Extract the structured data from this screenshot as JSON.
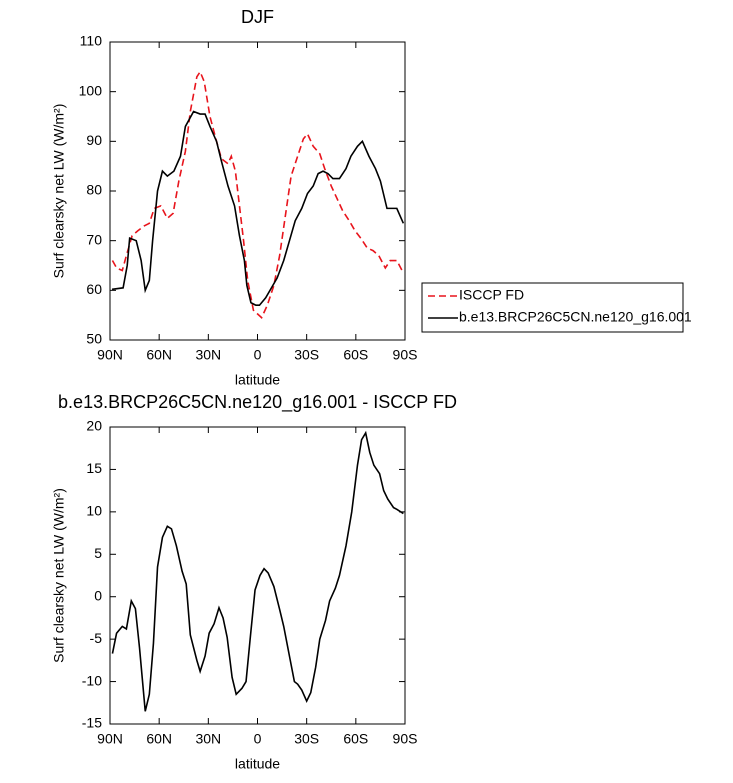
{
  "chart_data": [
    {
      "type": "line",
      "title": "DJF",
      "xlabel": "latitude",
      "ylabel": "Surf clearsky net LW (W/m²)",
      "xlim": [
        90,
        -90
      ],
      "xticks": [
        {
          "value": 90,
          "label": "90N"
        },
        {
          "value": 60,
          "label": "60N"
        },
        {
          "value": 30,
          "label": "30N"
        },
        0,
        {
          "value": -30,
          "label": "30S"
        },
        {
          "value": -60,
          "label": "60S"
        },
        {
          "value": -90,
          "label": "90S"
        }
      ],
      "ylim": [
        50,
        110
      ],
      "yticks": [
        50,
        60,
        70,
        80,
        90,
        100,
        110
      ],
      "legend": "outside-right",
      "series": [
        {
          "name": "ISCCP FD",
          "color": "#e8141c",
          "dashed": true,
          "x": [
            88.5,
            86,
            82.5,
            80,
            76.5,
            73,
            69,
            66,
            63,
            59,
            55,
            51.5,
            48,
            44,
            41,
            37,
            35,
            32.5,
            29,
            25,
            22,
            18,
            16,
            13.5,
            11,
            8.5,
            6,
            2.5,
            -2.5,
            -6,
            -10,
            -13.5,
            -17,
            -20.5,
            -24.5,
            -28,
            -30.5,
            -34,
            -38,
            -41,
            -45,
            -48.5,
            -52,
            -56,
            -59.5,
            -63,
            -67,
            -70.5,
            -74,
            -78,
            -81,
            -85,
            -89
          ],
          "values": [
            66,
            64.5,
            64,
            67,
            71,
            72,
            73,
            73.5,
            76.5,
            77,
            74.5,
            75.5,
            82,
            88,
            96,
            103,
            104,
            102,
            95,
            90,
            86.5,
            85.5,
            87,
            84,
            77,
            70,
            62,
            56,
            54.5,
            57,
            61,
            67,
            75,
            83,
            87,
            90.5,
            91.5,
            89,
            87.5,
            84.5,
            81,
            78.5,
            76,
            74,
            72,
            70.5,
            68.5,
            68,
            67,
            64.5,
            66,
            66,
            63.5
          ]
        },
        {
          "name": "b.e13.BRCP26C5CN.ne120_g16.001",
          "color": "#000000",
          "dashed": false,
          "x": [
            88.75,
            82,
            79.5,
            78,
            74,
            71,
            68.5,
            66,
            64,
            61,
            58,
            55,
            51,
            47,
            44,
            39,
            35,
            32,
            29,
            25,
            22,
            18,
            14,
            11,
            8,
            6.5,
            4,
            1,
            -1.2,
            -5,
            -8.5,
            -12,
            -16,
            -19.5,
            -23,
            -27,
            -30.5,
            -34,
            -37,
            -40,
            -43,
            -46,
            -50,
            -54,
            -57,
            -61,
            -64,
            -68,
            -72,
            -75,
            -79,
            -83,
            -85,
            -89
          ],
          "values": [
            60.2,
            60.5,
            65,
            70.5,
            70,
            66,
            60,
            62,
            70,
            80,
            84,
            83,
            84,
            87,
            93,
            96,
            95.5,
            95.5,
            93,
            90,
            86,
            81,
            77,
            71,
            66,
            61,
            57.5,
            57,
            57,
            58.5,
            60.5,
            62.5,
            66,
            70,
            74,
            76.5,
            79.5,
            81,
            83.5,
            84,
            83.5,
            82.5,
            82.5,
            84.5,
            87,
            89,
            90,
            87,
            84.5,
            82,
            76.5,
            76.5,
            76.5,
            73.5
          ]
        }
      ]
    },
    {
      "type": "line",
      "title": "b.e13.BRCP26C5CN.ne120_g16.001 - ISCCP FD",
      "xlabel": "latitude",
      "ylabel": "Surf clearsky net LW (W/m²)",
      "xlim": [
        90,
        -90
      ],
      "xticks": [
        {
          "value": 90,
          "label": "90N"
        },
        {
          "value": 60,
          "label": "60N"
        },
        {
          "value": 30,
          "label": "30N"
        },
        0,
        {
          "value": -30,
          "label": "30S"
        },
        {
          "value": -60,
          "label": "60S"
        },
        {
          "value": -90,
          "label": "90S"
        }
      ],
      "ylim": [
        -15,
        20
      ],
      "yticks": [
        -15,
        -10,
        -5,
        0,
        5,
        10,
        15,
        20
      ],
      "series": [
        {
          "color": "#000000",
          "dashed": false,
          "x": [
            88.5,
            86,
            82.5,
            80,
            77,
            74.5,
            72,
            68.5,
            66,
            63.5,
            61,
            58,
            55,
            52.5,
            49.5,
            46,
            43.5,
            41,
            37,
            35,
            32,
            29.5,
            26.5,
            23.5,
            21,
            18.5,
            15.5,
            13,
            9.5,
            7,
            4.5,
            1.5,
            -1.5,
            -4,
            -6.5,
            -10,
            -13.5,
            -16,
            -20,
            -22.5,
            -24.5,
            -27,
            -30,
            -32.5,
            -35.5,
            -38,
            -41.5,
            -44,
            -47.5,
            -50,
            -54,
            -57.5,
            -61,
            -63.5,
            -66,
            -68.5,
            -71,
            -74.5,
            -77,
            -79.5,
            -83,
            -85,
            -89
          ],
          "values": [
            -6.7,
            -4.3,
            -3.5,
            -3.8,
            -0.5,
            -1.4,
            -6,
            -13.5,
            -11.5,
            -5.5,
            3.5,
            7,
            8.3,
            8,
            6,
            3,
            1.5,
            -4.5,
            -7.5,
            -8.8,
            -7,
            -4.3,
            -3.2,
            -1.3,
            -2.5,
            -4.8,
            -9.5,
            -11.5,
            -10.8,
            -10,
            -5,
            0.8,
            2.5,
            3.3,
            2.8,
            1.2,
            -1.5,
            -3.5,
            -7.5,
            -10,
            -10.3,
            -11,
            -12.3,
            -11.3,
            -8.3,
            -5,
            -2.8,
            -0.5,
            1,
            2.5,
            6,
            10,
            15.5,
            18.5,
            19.3,
            17,
            15.5,
            14.5,
            12.5,
            11.5,
            10.5,
            10.3,
            9.8
          ]
        }
      ]
    }
  ]
}
